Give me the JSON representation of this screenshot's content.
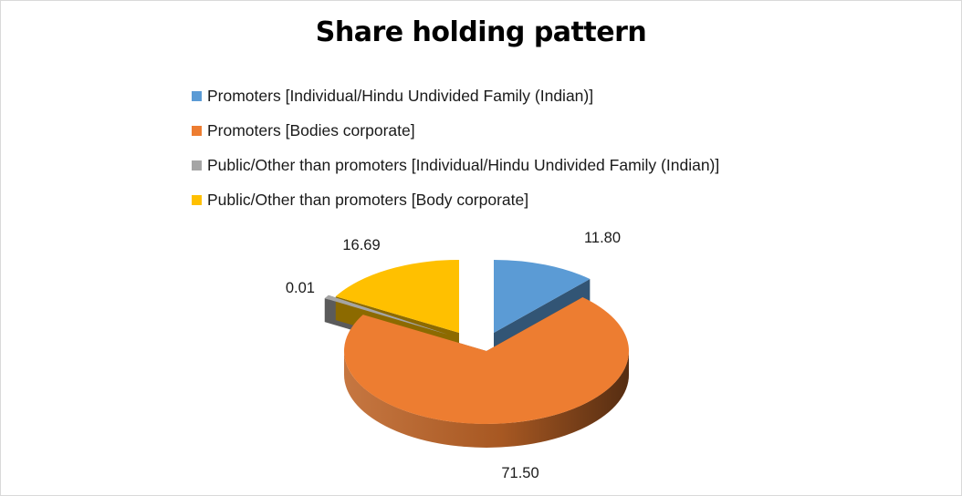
{
  "chart_data": {
    "type": "pie",
    "title": "Share holding pattern",
    "series": [
      {
        "name": "",
        "slices": [
          {
            "label": "Promoters [Individual/Hindu Undivided Family (Indian)]",
            "value": 11.8,
            "value_label": "11.80",
            "color": "#5b9bd5"
          },
          {
            "label": "Promoters [Bodies corporate]",
            "value": 71.5,
            "value_label": "71.50",
            "color": "#ed7d31"
          },
          {
            "label": "Public/Other than promoters [Individual/Hindu Undivided Family (Indian)]",
            "value": 0.01,
            "value_label": "0.01",
            "color": "#a5a5a5"
          },
          {
            "label": "Public/Other than promoters [Body corporate]",
            "value": 16.69,
            "value_label": "16.69",
            "color": "#ffc000"
          }
        ]
      }
    ],
    "legend_position": "top",
    "style": "3d-exploded"
  }
}
